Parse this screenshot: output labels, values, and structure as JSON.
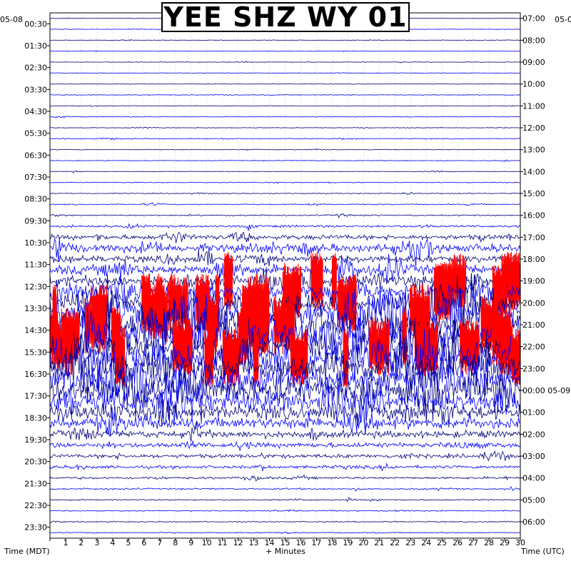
{
  "chart_data": {
    "type": "line",
    "title": "YEE SHZ WY 01",
    "start_date_left": "05-08",
    "start_date_right": "05-0",
    "date_change_right": "05-09",
    "xlabel": "+ Minutes",
    "left_axis_label": "Time (MDT)",
    "right_axis_label": "Time (UTC)",
    "x_ticks": [
      "1",
      "2",
      "3",
      "4",
      "5",
      "6",
      "7",
      "8",
      "9",
      "10",
      "11",
      "12",
      "13",
      "14",
      "15",
      "16",
      "17",
      "18",
      "19",
      "20",
      "21",
      "22",
      "23",
      "24",
      "25",
      "26",
      "27",
      "28",
      "29",
      "30"
    ],
    "xlim": [
      0,
      30
    ],
    "left_ticks": [
      "00:30",
      "01:30",
      "02:30",
      "03:30",
      "04:30",
      "05:30",
      "06:30",
      "07:30",
      "08:30",
      "09:30",
      "10:30",
      "11:30",
      "12:30",
      "13:30",
      "14:30",
      "15:30",
      "16:30",
      "17:30",
      "18:30",
      "19:30",
      "20:30",
      "21:30",
      "22:30",
      "23:30"
    ],
    "right_ticks": [
      "07:00",
      "08:00",
      "09:00",
      "10:00",
      "11:00",
      "12:00",
      "13:00",
      "14:00",
      "15:00",
      "16:00",
      "17:00",
      "18:00",
      "19:00",
      "20:00",
      "21:00",
      "22:00",
      "23:00",
      "00:00",
      "01:00",
      "02:00",
      "03:00",
      "04:00",
      "05:00",
      "06:00"
    ],
    "trace_count": 48,
    "trace_colors": [
      "#00007f",
      "#0000ff",
      "#ff0000",
      "#000000"
    ],
    "activity_per_trace": [
      0.05,
      0.06,
      0.05,
      0.05,
      0.05,
      0.06,
      0.05,
      0.07,
      0.05,
      0.06,
      0.05,
      0.08,
      0.06,
      0.07,
      0.05,
      0.08,
      0.08,
      0.1,
      0.12,
      0.2,
      0.35,
      0.5,
      0.45,
      0.55,
      0.6,
      0.7,
      0.85,
      1.0,
      1.0,
      1.0,
      1.0,
      1.0,
      1.0,
      1.0,
      0.95,
      0.85,
      0.7,
      0.6,
      0.45,
      0.35,
      0.3,
      0.25,
      0.2,
      0.15,
      0.12,
      0.1,
      0.1,
      0.1
    ],
    "clipped_traces": [
      24,
      25,
      26,
      27,
      28,
      29,
      30,
      31
    ],
    "grid": true
  }
}
